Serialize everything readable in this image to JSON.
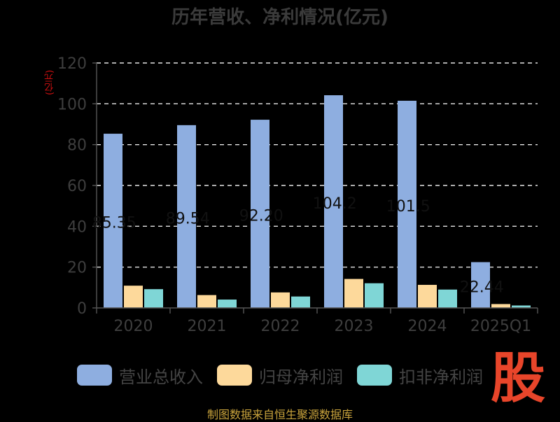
{
  "title": "历年营收、净利情况(亿元)",
  "y_unit": "(亿元)",
  "footer": "制图数据来自恒生聚源数据库",
  "logo_text": "股",
  "legend": [
    {
      "label": "营业总收入",
      "color": "#8eaee0"
    },
    {
      "label": "归母净利润",
      "color": "#fdd99b"
    },
    {
      "label": "扣非净利润",
      "color": "#7fd6d6"
    }
  ],
  "chart_data": {
    "type": "bar",
    "title": "历年营收、净利情况(亿元)",
    "ylabel": "(亿元)",
    "categories": [
      "2020",
      "2021",
      "2022",
      "2023",
      "2024",
      "2025Q1"
    ],
    "ylim": [
      0,
      120
    ],
    "yticks": [
      0,
      20,
      40,
      60,
      80,
      100,
      120
    ],
    "grid": true,
    "series": [
      {
        "name": "营业总收入",
        "color": "#8eaee0",
        "values": [
          85.35,
          89.54,
          92.2,
          104.2,
          101.5,
          22.44
        ]
      },
      {
        "name": "归母净利润",
        "color": "#fdd99b",
        "values": [
          10.9,
          6.3,
          7.6,
          14.2,
          11.3,
          1.9
        ]
      },
      {
        "name": "扣非净利润",
        "color": "#7fd6d6",
        "values": [
          9.2,
          4.1,
          5.6,
          12.1,
          9.0,
          1.2
        ]
      }
    ],
    "data_labels": [
      "85.35",
      "89.54",
      "92.20",
      "104.2",
      "101.5",
      "22.44"
    ]
  }
}
